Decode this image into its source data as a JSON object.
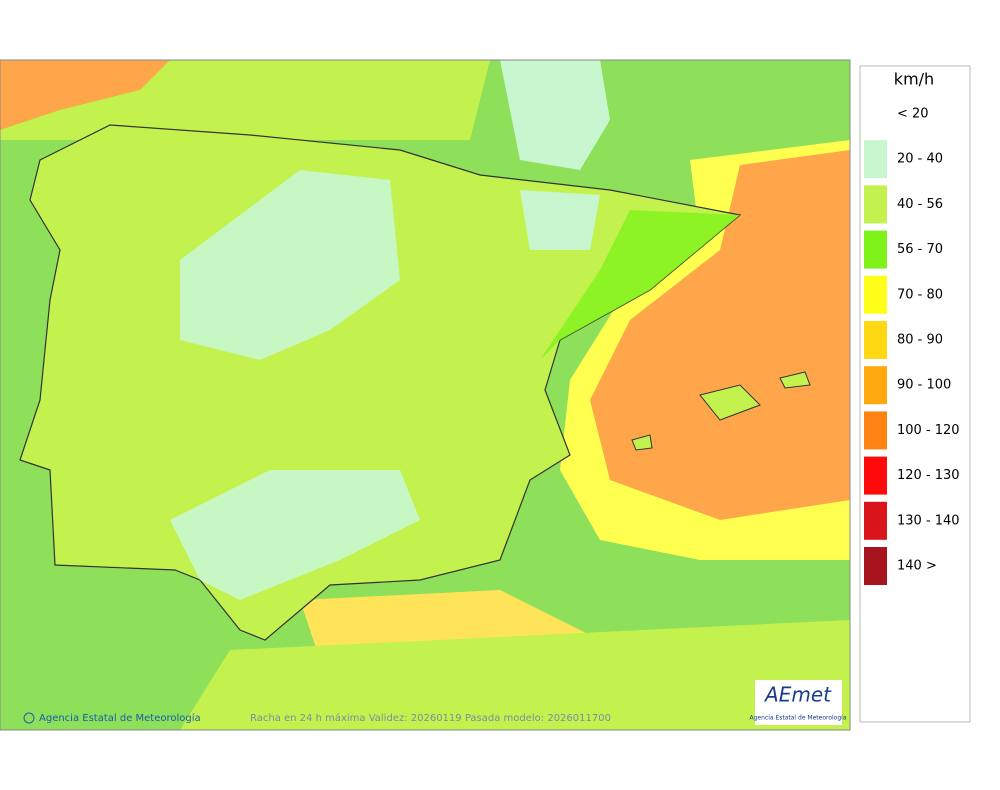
{
  "legend": {
    "title": "km/h",
    "items": [
      {
        "label": "< 20",
        "color": "#ffffff"
      },
      {
        "label": "20 - 40",
        "color": "#c8f7cf"
      },
      {
        "label": "40 - 56",
        "color": "#c3f24f"
      },
      {
        "label": "56 - 70",
        "color": "#7ff21a"
      },
      {
        "label": "70 - 80",
        "color": "#ffff1a"
      },
      {
        "label": "80 - 90",
        "color": "#ffd814"
      },
      {
        "label": "90 - 100",
        "color": "#ffa90d"
      },
      {
        "label": "100 - 120",
        "color": "#ff8214"
      },
      {
        "label": "120 - 130",
        "color": "#ff0a0a"
      },
      {
        "label": "130 - 140",
        "color": "#d9141a"
      },
      {
        "label": "140 >",
        "color": "#a8141e"
      }
    ]
  },
  "footer": {
    "credit": "Agencia Estatal de Meteorología",
    "caption": "Racha en 24 h máxima  Validez: 20260119 Pasada modelo: 2026011700"
  },
  "logo": {
    "name": "AEmet",
    "subtitle": "Agencia Estatal de Meteorología"
  }
}
